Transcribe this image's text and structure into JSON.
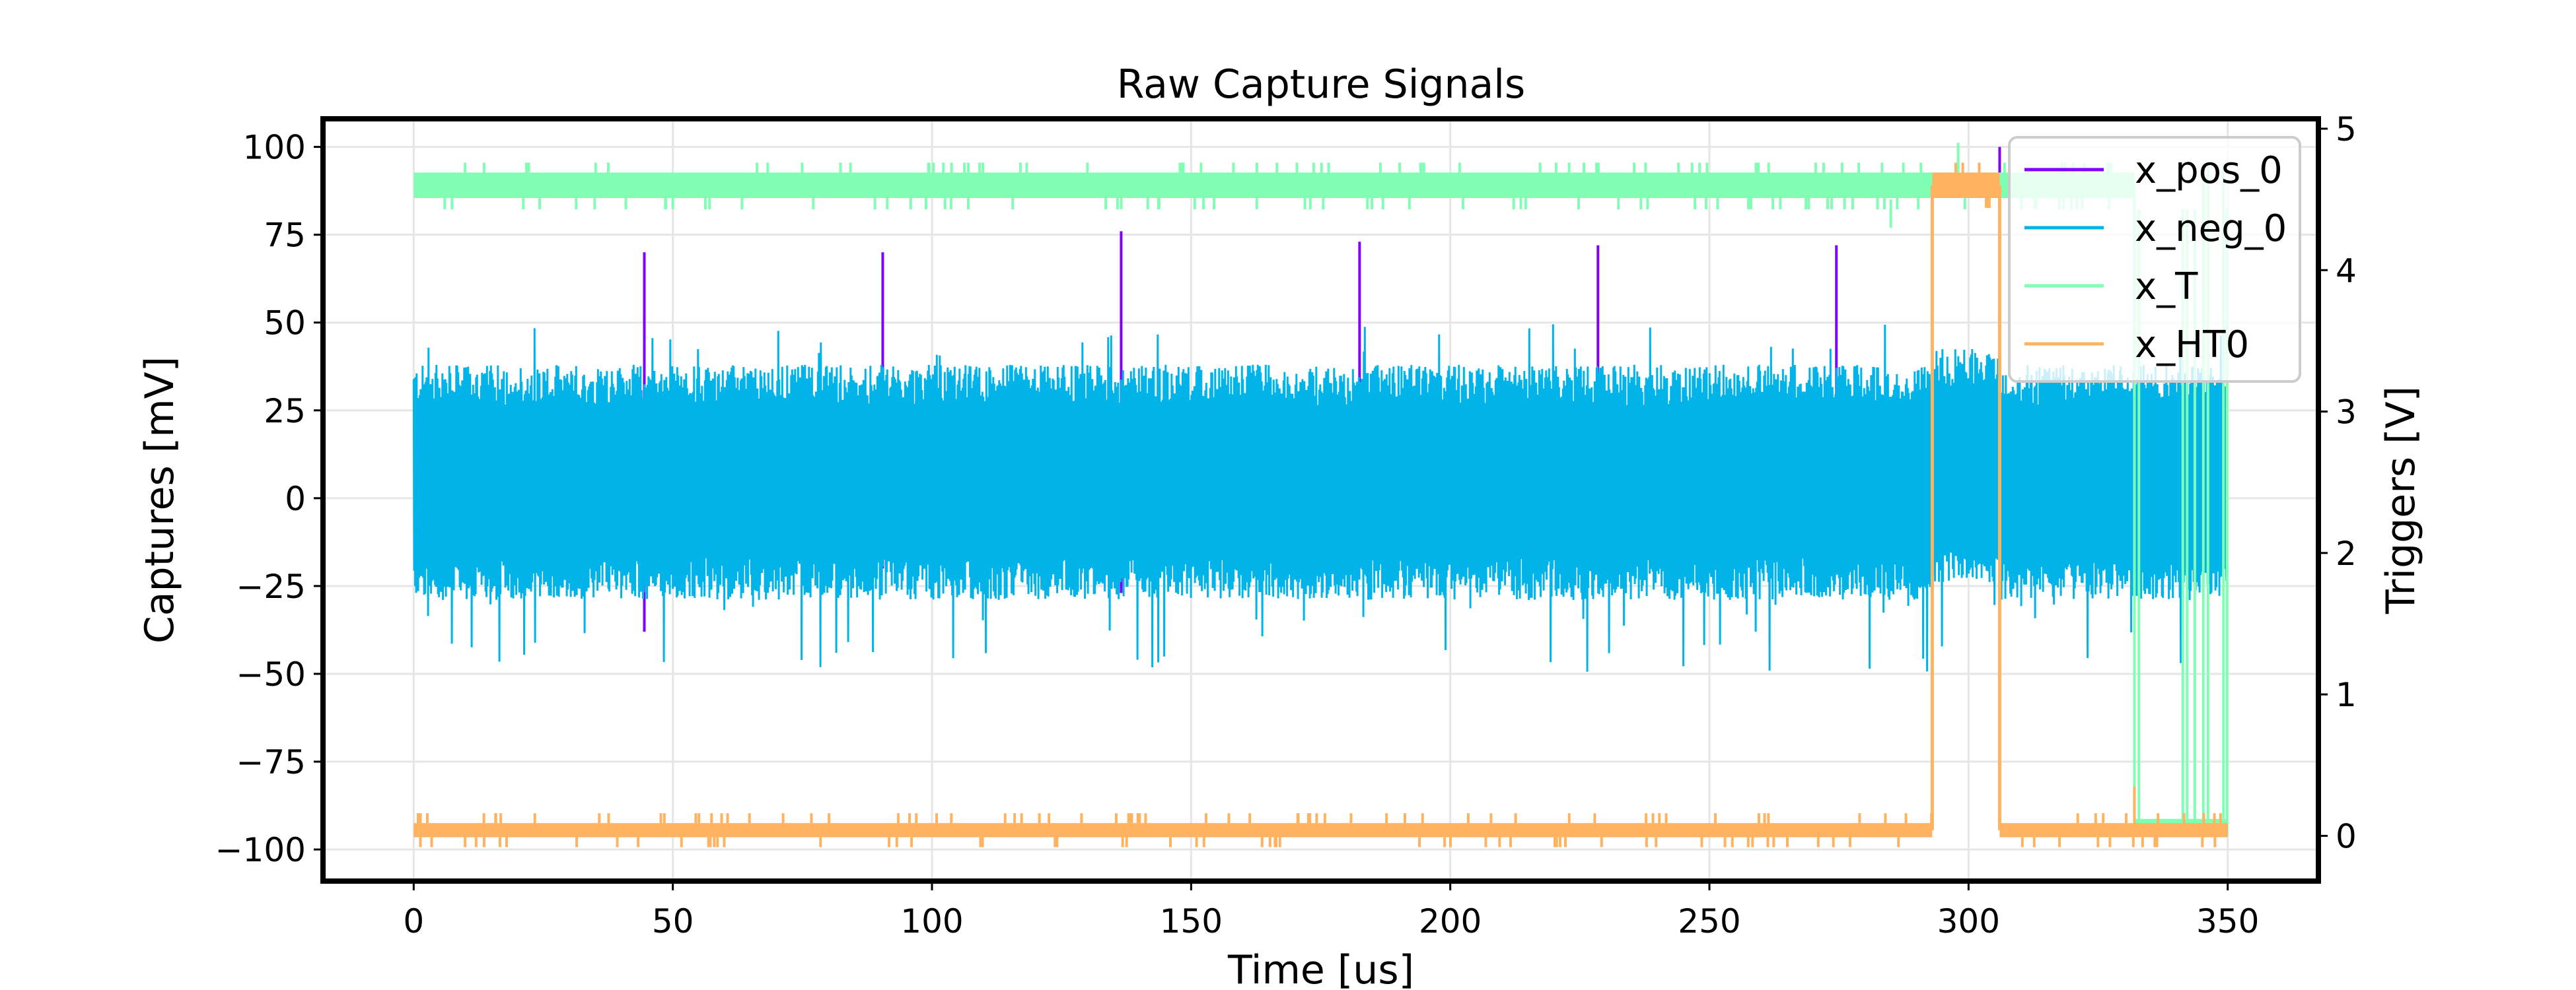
{
  "chart_data": {
    "type": "line",
    "title": "Raw Capture Signals",
    "xlabel": "Time [us]",
    "ylabel": "Captures [mV]",
    "y2label": "Triggers [V]",
    "xlim": [
      -17.5,
      367.5
    ],
    "ylim": [
      -109,
      108
    ],
    "y2lim": [
      -0.32,
      5.07
    ],
    "xticks": [
      0,
      50,
      100,
      150,
      200,
      250,
      300,
      350
    ],
    "yticks": [
      -100,
      -75,
      -50,
      -25,
      0,
      25,
      50,
      75,
      100
    ],
    "y2ticks": [
      0,
      1,
      2,
      3,
      4,
      5
    ],
    "xtick_labels": [
      "0",
      "50",
      "100",
      "150",
      "200",
      "250",
      "300",
      "350"
    ],
    "ytick_labels": [
      "−100",
      "−75",
      "−50",
      "−25",
      "0",
      "25",
      "50",
      "75",
      "100"
    ],
    "y2tick_labels": [
      "0",
      "1",
      "2",
      "3",
      "4",
      "5"
    ],
    "grid": true,
    "legend_placement": "upper-right",
    "series": [
      {
        "name": "x_pos_0",
        "axis": "left",
        "color": "#8000ff",
        "pulses": [
          {
            "t": 44.5,
            "peak": 70,
            "dip": -38
          },
          {
            "t": 90.5,
            "peak": 70,
            "dip": -20
          },
          {
            "t": 136.5,
            "peak": 76,
            "dip": -27
          },
          {
            "t": 182.5,
            "peak": 73,
            "dip": -20
          },
          {
            "t": 228.5,
            "peak": 72,
            "dip": -20
          },
          {
            "t": 274.5,
            "peak": 72,
            "dip": -20
          },
          {
            "t": 306.0,
            "peak": 100,
            "dip": -35
          }
        ]
      },
      {
        "name": "x_neg_0",
        "axis": "left",
        "color": "#00b4ea",
        "t_range": [
          0,
          350
        ],
        "typical_high": [
          28,
          40
        ],
        "typical_low": [
          -30,
          -18
        ],
        "spike_max": 50,
        "spike_min": -50
      },
      {
        "name": "x_T",
        "axis": "right",
        "color": "#80ffb4",
        "segments": [
          {
            "t_start": 0,
            "t_end": 332,
            "level": [
              4.51,
              4.69
            ]
          },
          {
            "t_start": 332,
            "t_end": 350,
            "level": [
              0.0,
              0.12
            ]
          }
        ],
        "glitch_up": 4.76,
        "glitch_down": 4.43
      },
      {
        "name": "x_HT0",
        "axis": "right",
        "color": "#ffb360",
        "segments": [
          {
            "t_start": 0,
            "t_end": 293,
            "level": [
              -0.01,
              0.09
            ]
          },
          {
            "t_start": 293,
            "t_end": 306,
            "level": [
              4.51,
              4.69
            ]
          },
          {
            "t_start": 306,
            "t_end": 350,
            "level": [
              -0.01,
              0.09
            ]
          }
        ],
        "glitch_up": 0.16,
        "glitch_down": -0.08
      }
    ]
  }
}
